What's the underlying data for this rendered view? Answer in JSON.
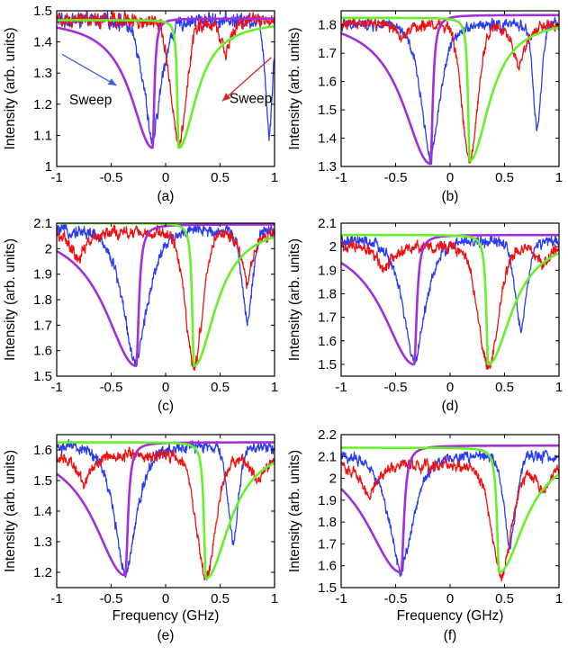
{
  "figure": {
    "colors": {
      "blue": "#2b3cf5",
      "red": "#f01010",
      "green": "#66f02a",
      "purple": "#a22fd9",
      "annotation_blue": "#3f5fd8",
      "annotation_red": "#e02020"
    }
  },
  "chart_data": [
    {
      "type": "line",
      "panel": "(a)",
      "xlabel": "",
      "ylabel": "Intensity (arb. units)",
      "xlim": [
        -1,
        1
      ],
      "ylim": [
        1.0,
        1.5
      ],
      "xticks": [
        "-1",
        "-0.5",
        "0",
        "0.5",
        "1"
      ],
      "yticks": [
        "1",
        "1.1",
        "1.2",
        "1.3",
        "1.4",
        "1.5"
      ],
      "annotations": [
        {
          "text": "Sweep",
          "color": "blue",
          "arrow_from": [
            -0.95,
            1.36
          ],
          "arrow_to": [
            -0.45,
            1.26
          ]
        },
        {
          "text": "Sweep",
          "color": "red",
          "arrow_from": [
            0.97,
            1.35
          ],
          "arrow_to": [
            0.52,
            1.21
          ]
        }
      ],
      "series": [
        {
          "name": "blue data",
          "color": "blue",
          "baseline": 1.47,
          "dips": [
            [
              -0.12,
              1.07,
              0.15,
              1.2
            ],
            [
              0.95,
              1.11,
              0.06,
              1.4
            ]
          ],
          "noise": 0.025
        },
        {
          "name": "red data",
          "color": "red",
          "baseline": 1.47,
          "dips": [
            [
              0.12,
              1.07,
              0.13,
              1.6
            ],
            [
              0.55,
              1.36,
              0.1,
              1.0
            ]
          ],
          "noise": 0.025
        },
        {
          "name": "purple fit",
          "color": "purple",
          "baseline": 1.475,
          "dip_center": -0.12,
          "dip_min": 1.06,
          "width": 0.11,
          "asym": "left"
        },
        {
          "name": "green fit",
          "color": "green",
          "baseline": 1.47,
          "dip_center": 0.12,
          "dip_min": 1.06,
          "width": 0.09,
          "asym": "right"
        }
      ]
    },
    {
      "type": "line",
      "panel": "(b)",
      "xlabel": "",
      "ylabel": "Intensity (arb. units)",
      "xlim": [
        -1,
        1
      ],
      "ylim": [
        1.3,
        1.85
      ],
      "xticks": [
        "-1",
        "-0.5",
        "0",
        "0.5",
        "1"
      ],
      "yticks": [
        "1.3",
        "1.4",
        "1.5",
        "1.6",
        "1.7",
        "1.8"
      ],
      "annotations": [],
      "series": [
        {
          "name": "blue data",
          "color": "blue",
          "baseline": 1.8,
          "dips": [
            [
              -0.18,
              1.32,
              0.17,
              1.2
            ],
            [
              0.8,
              1.43,
              0.07,
              1.5
            ]
          ],
          "noise": 0.02
        },
        {
          "name": "red data",
          "color": "red",
          "baseline": 1.8,
          "dips": [
            [
              0.18,
              1.32,
              0.13,
              1.6
            ],
            [
              0.63,
              1.64,
              0.12,
              1.0
            ],
            [
              -0.45,
              1.74,
              0.08,
              1.0
            ]
          ],
          "noise": 0.02
        },
        {
          "name": "purple fit",
          "color": "purple",
          "baseline": 1.835,
          "dip_center": -0.18,
          "dip_min": 1.31,
          "width": 0.14,
          "asym": "left"
        },
        {
          "name": "green fit",
          "color": "green",
          "baseline": 1.825,
          "dip_center": 0.18,
          "dip_min": 1.32,
          "width": 0.1,
          "asym": "right"
        }
      ]
    },
    {
      "type": "line",
      "panel": "(c)",
      "xlabel": "",
      "ylabel": "Intensity (arb. units)",
      "xlim": [
        -1,
        1
      ],
      "ylim": [
        1.5,
        2.1
      ],
      "xticks": [
        "-1",
        "-0.5",
        "0",
        "0.5",
        "1"
      ],
      "yticks": [
        "1.5",
        "1.6",
        "1.7",
        "1.8",
        "1.9",
        "2",
        "2.1"
      ],
      "annotations": [],
      "series": [
        {
          "name": "blue data",
          "color": "blue",
          "baseline": 2.07,
          "dips": [
            [
              -0.28,
              1.54,
              0.22,
              1.2
            ],
            [
              0.75,
              1.72,
              0.09,
              1.4
            ]
          ],
          "noise": 0.025
        },
        {
          "name": "red data",
          "color": "red",
          "baseline": 2.06,
          "dips": [
            [
              0.26,
              1.54,
              0.14,
              1.6
            ],
            [
              -0.8,
              1.95,
              0.12,
              1.0
            ],
            [
              0.75,
              1.86,
              0.1,
              1.0
            ]
          ],
          "noise": 0.025
        },
        {
          "name": "purple fit",
          "color": "purple",
          "baseline": 2.095,
          "dip_center": -0.27,
          "dip_min": 1.54,
          "width": 0.16,
          "asym": "left"
        },
        {
          "name": "green fit",
          "color": "green",
          "baseline": 2.1,
          "dip_center": 0.26,
          "dip_min": 1.54,
          "width": 0.11,
          "asym": "right"
        }
      ]
    },
    {
      "type": "line",
      "panel": "(d)",
      "xlabel": "",
      "ylabel": "Intensity (arb. units)",
      "xlim": [
        -1,
        1
      ],
      "ylim": [
        1.45,
        2.1
      ],
      "xticks": [
        "-1",
        "-0.5",
        "0",
        "0.5",
        "1"
      ],
      "yticks": [
        "1.5",
        "1.6",
        "1.7",
        "1.8",
        "1.9",
        "2",
        "2.1"
      ],
      "annotations": [],
      "series": [
        {
          "name": "blue data",
          "color": "blue",
          "baseline": 2.02,
          "dips": [
            [
              -0.33,
              1.5,
              0.2,
              1.2
            ],
            [
              0.65,
              1.65,
              0.1,
              1.4
            ]
          ],
          "noise": 0.025
        },
        {
          "name": "red data",
          "color": "red",
          "baseline": 2.0,
          "dips": [
            [
              0.35,
              1.48,
              0.17,
              1.5
            ],
            [
              -0.6,
              1.9,
              0.15,
              1.0
            ],
            [
              0.85,
              1.92,
              0.12,
              1.0
            ]
          ],
          "noise": 0.025
        },
        {
          "name": "purple fit",
          "color": "purple",
          "baseline": 2.05,
          "dip_center": -0.33,
          "dip_min": 1.5,
          "width": 0.16,
          "asym": "left"
        },
        {
          "name": "green fit",
          "color": "green",
          "baseline": 2.05,
          "dip_center": 0.35,
          "dip_min": 1.5,
          "width": 0.12,
          "asym": "right"
        }
      ]
    },
    {
      "type": "line",
      "panel": "(e)",
      "xlabel": "Frequency (GHz)",
      "ylabel": "Intensity (arb. units)",
      "xlim": [
        -1,
        1
      ],
      "ylim": [
        1.15,
        1.65
      ],
      "xticks": [
        "-1",
        "-0.5",
        "0",
        "0.5",
        "1"
      ],
      "yticks": [
        "1.2",
        "1.3",
        "1.4",
        "1.5",
        "1.6"
      ],
      "annotations": [],
      "series": [
        {
          "name": "blue data",
          "color": "blue",
          "baseline": 1.61,
          "dips": [
            [
              -0.37,
              1.19,
              0.2,
              1.2
            ],
            [
              0.62,
              1.3,
              0.09,
              1.4
            ]
          ],
          "noise": 0.02
        },
        {
          "name": "red data",
          "color": "red",
          "baseline": 1.58,
          "dips": [
            [
              0.37,
              1.18,
              0.16,
              1.5
            ],
            [
              -0.75,
              1.48,
              0.13,
              1.0
            ],
            [
              0.85,
              1.48,
              0.12,
              1.0
            ]
          ],
          "noise": 0.02
        },
        {
          "name": "purple fit",
          "color": "purple",
          "baseline": 1.625,
          "dip_center": -0.37,
          "dip_min": 1.19,
          "width": 0.16,
          "asym": "left"
        },
        {
          "name": "green fit",
          "color": "green",
          "baseline": 1.625,
          "dip_center": 0.37,
          "dip_min": 1.18,
          "width": 0.12,
          "asym": "right"
        }
      ]
    },
    {
      "type": "line",
      "panel": "(f)",
      "xlabel": "Frequency (GHz)",
      "ylabel": "Intensity (arb. units)",
      "xlim": [
        -1,
        1
      ],
      "ylim": [
        1.5,
        2.2
      ],
      "xticks": [
        "-1",
        "-0.5",
        "0",
        "0.5",
        "1"
      ],
      "yticks": [
        "1.5",
        "1.6",
        "1.7",
        "1.8",
        "1.9",
        "2",
        "2.1",
        "2.2"
      ],
      "annotations": [],
      "series": [
        {
          "name": "blue data",
          "color": "blue",
          "baseline": 2.1,
          "dips": [
            [
              -0.45,
              1.57,
              0.22,
              1.2
            ],
            [
              0.55,
              1.68,
              0.1,
              1.4
            ]
          ],
          "noise": 0.025
        },
        {
          "name": "red data",
          "color": "red",
          "baseline": 2.06,
          "dips": [
            [
              0.47,
              1.56,
              0.17,
              1.5
            ],
            [
              -0.75,
              1.9,
              0.14,
              1.0
            ],
            [
              0.85,
              1.92,
              0.12,
              1.0
            ]
          ],
          "noise": 0.025
        },
        {
          "name": "purple fit",
          "color": "purple",
          "baseline": 2.15,
          "dip_center": -0.45,
          "dip_min": 1.57,
          "width": 0.18,
          "asym": "left"
        },
        {
          "name": "green fit",
          "color": "green",
          "baseline": 2.14,
          "dip_center": 0.45,
          "dip_min": 1.57,
          "width": 0.13,
          "asym": "right"
        }
      ]
    }
  ]
}
